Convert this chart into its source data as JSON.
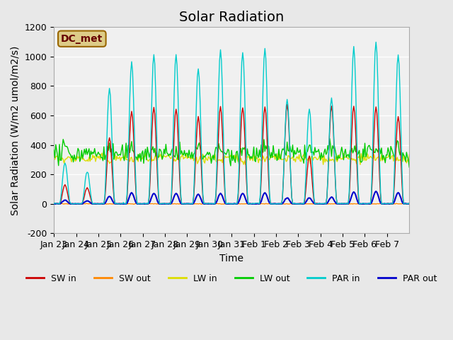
{
  "title": "Solar Radiation",
  "ylabel": "Solar Radiation (W/m2 umol/m2/s)",
  "xlabel": "Time",
  "annotation": "DC_met",
  "ylim": [
    -200,
    1200
  ],
  "days": 16,
  "xtick_labels": [
    "Jan 23",
    "Jan 24",
    "Jan 25",
    "Jan 26",
    "Jan 27",
    "Jan 28",
    "Jan 29",
    "Jan 30",
    "Jan 31",
    "Feb 1",
    "Feb 2",
    "Feb 3",
    "Feb 4",
    "Feb 5",
    "Feb 6",
    "Feb 7"
  ],
  "legend_entries": [
    "SW in",
    "SW out",
    "LW in",
    "LW out",
    "PAR in",
    "PAR out"
  ],
  "colors": {
    "SW_in": "#cc0000",
    "SW_out": "#ff8800",
    "LW_in": "#dddd00",
    "LW_out": "#00cc00",
    "PAR_in": "#00cccc",
    "PAR_out": "#0000cc"
  },
  "background_color": "#e8e8e8",
  "plot_bg_color": "#f0f0f0",
  "grid_color": "#ffffff",
  "annotation_box_color": "#ddcc88",
  "annotation_text_color": "#660000",
  "title_fontsize": 14,
  "label_fontsize": 10,
  "tick_fontsize": 9,
  "lw_in_base": 310,
  "lw_out_base": 335,
  "lw_in_noise": 15,
  "lw_out_noise": 30,
  "sw_peak_heights": [
    130,
    110,
    450,
    630,
    655,
    645,
    590,
    660,
    655,
    660,
    670,
    325,
    665,
    665,
    660,
    590
  ],
  "par_peak_heights": [
    280,
    220,
    785,
    960,
    1010,
    1015,
    920,
    1045,
    1030,
    1055,
    710,
    650,
    720,
    1065,
    1100,
    1010
  ],
  "par_out_peak_heights": [
    25,
    20,
    50,
    75,
    70,
    70,
    65,
    70,
    70,
    75,
    40,
    40,
    45,
    80,
    85,
    75
  ],
  "yticks": [
    -200,
    0,
    200,
    400,
    600,
    800,
    1000,
    1200
  ]
}
